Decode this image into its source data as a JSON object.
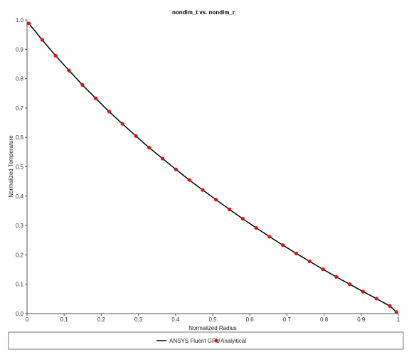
{
  "chart_data": {
    "type": "line",
    "title": "nondim_t vs. nondim_r",
    "xlabel": "Normalized Radius",
    "ylabel": "Normalized Temperature",
    "xlim": [
      0,
      1
    ],
    "ylim": [
      0,
      1.0
    ],
    "xticks": [
      "0",
      "0.1",
      "0.2",
      "0.3",
      "0.4",
      "0.5",
      "0.6",
      "0.7",
      "0.8",
      "0.9",
      "1"
    ],
    "yticks": [
      "0.0",
      "0.1",
      "0.2",
      "0.3",
      "0.4",
      "0.5",
      "0.6",
      "0.7",
      "0.8",
      "0.9",
      "1.0"
    ],
    "grid": false,
    "legend_position": "bottom",
    "series": [
      {
        "name": "ANSYS Fluent GPU",
        "kind": "line",
        "color": "#000000",
        "x": [
          0.005,
          0.041,
          0.077,
          0.113,
          0.149,
          0.185,
          0.221,
          0.257,
          0.293,
          0.329,
          0.365,
          0.401,
          0.437,
          0.473,
          0.509,
          0.545,
          0.581,
          0.617,
          0.653,
          0.689,
          0.725,
          0.761,
          0.797,
          0.833,
          0.869,
          0.905,
          0.941,
          0.977,
          0.995
        ],
        "y": [
          0.988,
          0.932,
          0.878,
          0.828,
          0.779,
          0.733,
          0.688,
          0.646,
          0.605,
          0.565,
          0.528,
          0.491,
          0.455,
          0.421,
          0.388,
          0.355,
          0.323,
          0.292,
          0.262,
          0.233,
          0.205,
          0.178,
          0.151,
          0.125,
          0.1,
          0.075,
          0.051,
          0.026,
          0.005
        ]
      },
      {
        "name": "Analyitical",
        "kind": "scatter",
        "color": "#e01010",
        "x": [
          0.005,
          0.041,
          0.077,
          0.113,
          0.149,
          0.185,
          0.221,
          0.257,
          0.293,
          0.329,
          0.365,
          0.401,
          0.437,
          0.473,
          0.509,
          0.545,
          0.581,
          0.617,
          0.653,
          0.689,
          0.725,
          0.761,
          0.797,
          0.833,
          0.869,
          0.905,
          0.941,
          0.977,
          0.995
        ],
        "y": [
          0.988,
          0.932,
          0.878,
          0.828,
          0.779,
          0.733,
          0.688,
          0.646,
          0.605,
          0.565,
          0.528,
          0.491,
          0.455,
          0.421,
          0.388,
          0.355,
          0.323,
          0.292,
          0.262,
          0.233,
          0.205,
          0.178,
          0.151,
          0.125,
          0.1,
          0.075,
          0.051,
          0.026,
          0.005
        ]
      }
    ]
  }
}
